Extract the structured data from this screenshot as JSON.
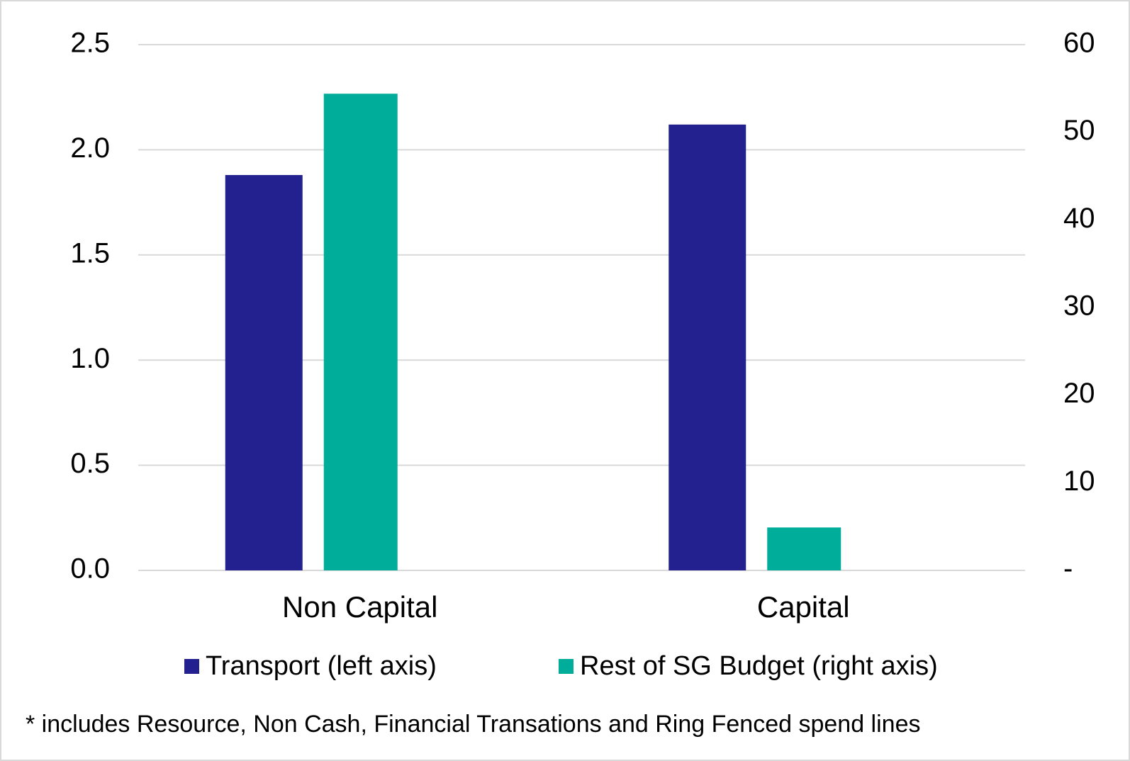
{
  "chart_data": {
    "type": "bar",
    "categories": [
      "Non Capital",
      "Capital"
    ],
    "series": [
      {
        "name": "Transport (left axis)",
        "color": "#22218f",
        "values": [
          1.88,
          2.12
        ]
      },
      {
        "name": "Rest of SG Budget (right axis)",
        "color": "#00ad9a",
        "values": [
          54.4,
          4.9
        ],
        "axis": "y2"
      }
    ],
    "ylim": [
      0,
      2.5
    ],
    "yticks": [
      {
        "value": 0,
        "label": "0.0"
      },
      0.5,
      {
        "value": 1,
        "label": "1.0"
      },
      1.5,
      {
        "value": 2,
        "label": "2.0"
      },
      2.5
    ],
    "y2lim": [
      0,
      60
    ],
    "y2ticks": [
      {
        "value": 0,
        "label": "-"
      },
      10,
      20,
      30,
      40,
      50,
      60
    ],
    "grid": true,
    "legend": "bottom",
    "annotation": "* includes Resource, Non Cash, Financial Transations and Ring Fenced spend lines"
  }
}
